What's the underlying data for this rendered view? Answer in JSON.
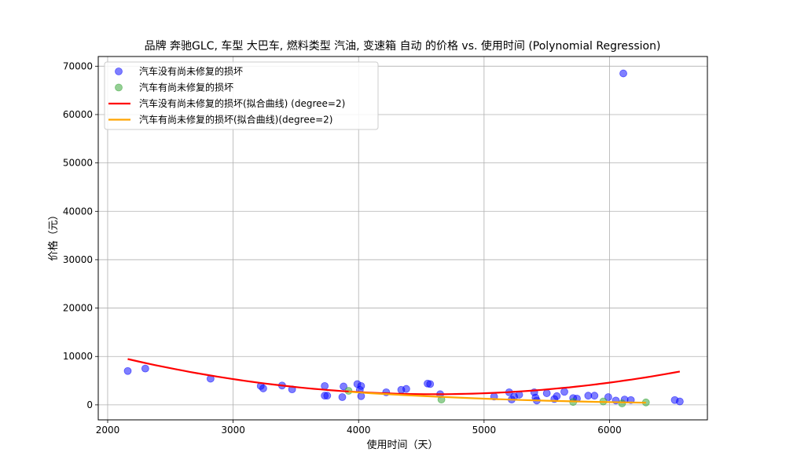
{
  "chart_data": {
    "type": "scatter",
    "title": "品牌 奔驰GLC, 车型 大巴车, 燃料类型 汽油, 变速箱 自动 的价格 vs. 使用时间 (Polynomial Regression)",
    "xlabel": "使用时间（天）",
    "ylabel": "价格（元）",
    "xlim": [
      1925,
      6780
    ],
    "ylim": [
      -3100,
      72000
    ],
    "xticks": [
      2000,
      3000,
      4000,
      5000,
      6000
    ],
    "yticks": [
      0,
      10000,
      20000,
      30000,
      40000,
      50000,
      60000,
      70000
    ],
    "grid": true,
    "legend_position": "top-left",
    "series": [
      {
        "name": "汽车没有尚未修复的损坏",
        "kind": "scatter",
        "color": "#0000ff",
        "points": [
          {
            "x": 2160,
            "y": 7000
          },
          {
            "x": 2300,
            "y": 7500
          },
          {
            "x": 2820,
            "y": 5400
          },
          {
            "x": 3220,
            "y": 3900
          },
          {
            "x": 3240,
            "y": 3400
          },
          {
            "x": 3390,
            "y": 4000
          },
          {
            "x": 3470,
            "y": 3200
          },
          {
            "x": 3730,
            "y": 3900
          },
          {
            "x": 3730,
            "y": 1900
          },
          {
            "x": 3750,
            "y": 1900
          },
          {
            "x": 3870,
            "y": 1600
          },
          {
            "x": 3880,
            "y": 3800
          },
          {
            "x": 3990,
            "y": 4300
          },
          {
            "x": 4020,
            "y": 3900
          },
          {
            "x": 4010,
            "y": 3100
          },
          {
            "x": 4020,
            "y": 1800
          },
          {
            "x": 4220,
            "y": 2600
          },
          {
            "x": 4340,
            "y": 3100
          },
          {
            "x": 4380,
            "y": 3300
          },
          {
            "x": 4550,
            "y": 4400
          },
          {
            "x": 4570,
            "y": 4300
          },
          {
            "x": 4650,
            "y": 2200
          },
          {
            "x": 5080,
            "y": 1700
          },
          {
            "x": 5200,
            "y": 2600
          },
          {
            "x": 5220,
            "y": 1100
          },
          {
            "x": 5240,
            "y": 1700
          },
          {
            "x": 5280,
            "y": 2100
          },
          {
            "x": 5400,
            "y": 2600
          },
          {
            "x": 5410,
            "y": 1500
          },
          {
            "x": 5420,
            "y": 900
          },
          {
            "x": 5500,
            "y": 2400
          },
          {
            "x": 5560,
            "y": 1200
          },
          {
            "x": 5580,
            "y": 1800
          },
          {
            "x": 5640,
            "y": 2700
          },
          {
            "x": 5710,
            "y": 1400
          },
          {
            "x": 5740,
            "y": 1300
          },
          {
            "x": 5830,
            "y": 1900
          },
          {
            "x": 5880,
            "y": 1900
          },
          {
            "x": 5990,
            "y": 1600
          },
          {
            "x": 6050,
            "y": 900
          },
          {
            "x": 6110,
            "y": 68500
          },
          {
            "x": 6120,
            "y": 1100
          },
          {
            "x": 6170,
            "y": 1000
          },
          {
            "x": 6520,
            "y": 1000
          },
          {
            "x": 6560,
            "y": 700
          }
        ]
      },
      {
        "name": "汽车有尚未修复的损坏",
        "kind": "scatter",
        "color": "#2ca02c",
        "points": [
          {
            "x": 3920,
            "y": 2900
          },
          {
            "x": 4660,
            "y": 1100
          },
          {
            "x": 5710,
            "y": 600
          },
          {
            "x": 5950,
            "y": 700
          },
          {
            "x": 6100,
            "y": 300
          },
          {
            "x": 6290,
            "y": 500
          }
        ]
      },
      {
        "name": "汽车没有尚未修复的损坏(拟合曲线) (degree=2)",
        "kind": "line",
        "color": "#ff0000",
        "x_range": [
          2160,
          6560
        ],
        "polynomial": {
          "center": 4600,
          "vertex_y": 2200,
          "a": 0.00122
        }
      },
      {
        "name": "汽车有尚未修复的损坏(拟合曲线)(degree=2)",
        "kind": "line",
        "color": "#ffa500",
        "x": [
          3920,
          4100,
          4300,
          4500,
          4700,
          4900,
          5100,
          5300,
          5500,
          5700,
          5900,
          6100,
          6290
        ],
        "y": [
          2700,
          2400,
          2100,
          1850,
          1600,
          1380,
          1180,
          1000,
          850,
          720,
          610,
          520,
          450
        ]
      }
    ]
  }
}
